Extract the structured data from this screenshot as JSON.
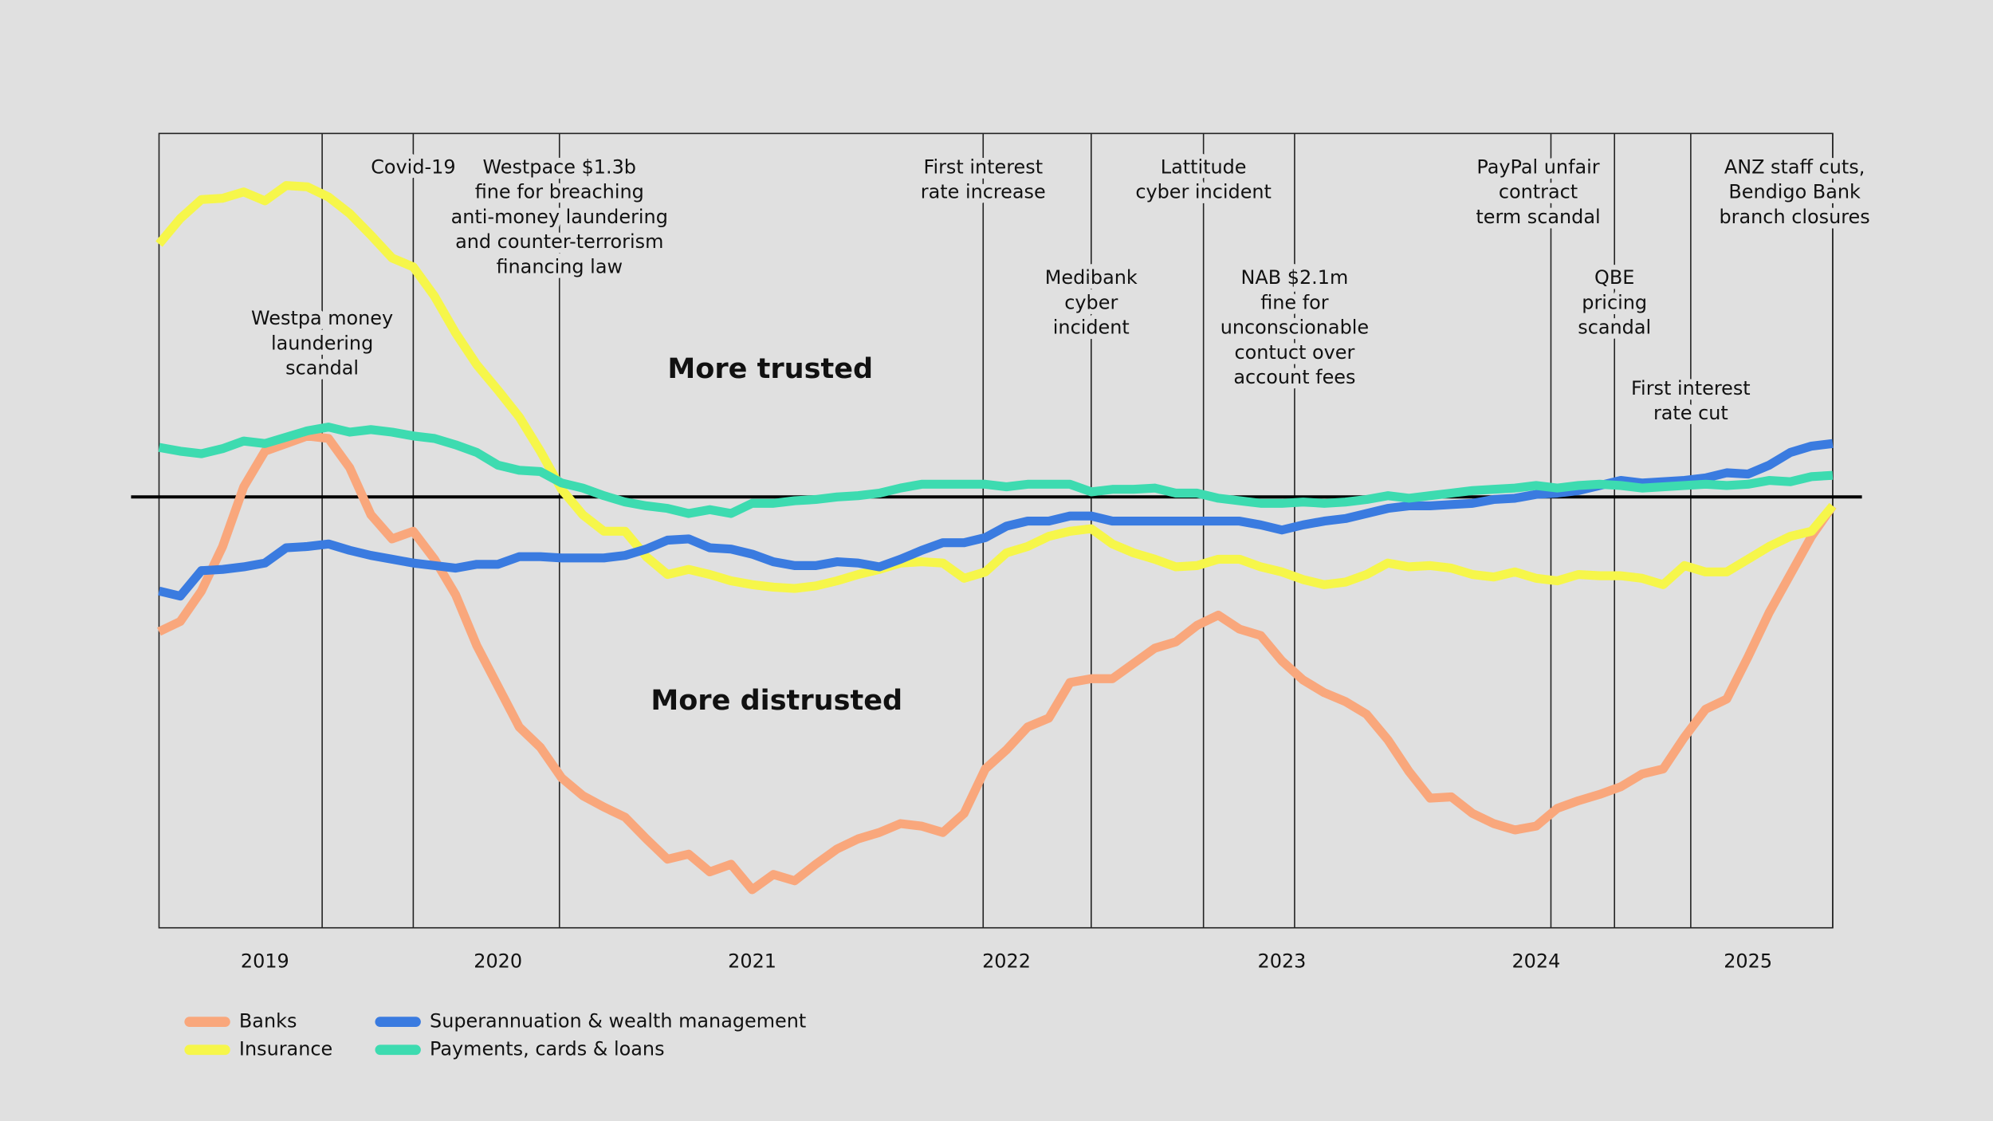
{
  "chart_data": {
    "type": "line",
    "upper_label": "More trusted",
    "lower_label": "More distrusted",
    "categories": [
      null,
      null,
      null,
      null,
      null,
      "2019",
      null,
      null,
      null,
      null,
      null,
      null,
      null,
      null,
      null,
      null,
      "2020",
      null,
      null,
      null,
      null,
      null,
      null,
      null,
      null,
      null,
      null,
      null,
      "2021",
      null,
      null,
      null,
      null,
      null,
      null,
      null,
      null,
      null,
      null,
      null,
      "2022",
      null,
      null,
      null,
      null,
      null,
      null,
      null,
      null,
      null,
      null,
      null,
      null,
      "2023",
      null,
      null,
      null,
      null,
      null,
      null,
      null,
      null,
      null,
      null,
      null,
      "2024",
      null,
      null,
      null,
      null,
      null,
      null,
      null,
      null,
      null,
      "2025",
      null,
      null,
      null,
      null
    ],
    "ylim": [
      -339,
      286
    ],
    "hline": 0,
    "series": [
      {
        "name": "Banks",
        "color": "#f9a77c",
        "values": [
          -106,
          -98,
          -74,
          -39,
          8,
          36,
          42,
          48,
          46,
          23,
          -14,
          -33,
          -27,
          -49,
          -77,
          -117,
          -149,
          -181,
          -197,
          -221,
          -235,
          -244,
          -252,
          -269,
          -285,
          -281,
          -295,
          -289,
          -309,
          -297,
          -302,
          -289,
          -277,
          -269,
          -264,
          -257,
          -259,
          -264,
          -249,
          -214,
          -199,
          -181,
          -174,
          -146,
          -143,
          -143,
          -131,
          -119,
          -114,
          -101,
          -93,
          -104,
          -109,
          -129,
          -144,
          -154,
          -161,
          -171,
          -191,
          -216,
          -237,
          -236,
          -249,
          -257,
          -262,
          -259,
          -245,
          -239,
          -234,
          -228,
          -218,
          -214,
          -189,
          -167,
          -159,
          -126,
          -91,
          -61,
          -31,
          -7
        ]
      },
      {
        "name": "Insurance",
        "color": "#f6f64a",
        "values": [
          199,
          219,
          234,
          235,
          240,
          233,
          245,
          244,
          236,
          223,
          206,
          188,
          181,
          158,
          129,
          104,
          84,
          63,
          36,
          6,
          -14,
          -27,
          -27,
          -47,
          -61,
          -57,
          -61,
          -66,
          -69,
          -71,
          -72,
          -70,
          -66,
          -61,
          -57,
          -52,
          -51,
          -52,
          -64,
          -59,
          -44,
          -39,
          -31,
          -27,
          -25,
          -37,
          -44,
          -49,
          -55,
          -54,
          -49,
          -49,
          -55,
          -59,
          -65,
          -69,
          -67,
          -61,
          -52,
          -55,
          -54,
          -56,
          -61,
          -63,
          -59,
          -64,
          -66,
          -61,
          -62,
          -62,
          -64,
          -69,
          -54,
          -59,
          -59,
          -49,
          -39,
          -31,
          -27,
          -7
        ]
      },
      {
        "name": "Superannuation & wealth management",
        "color": "#3a7be0",
        "values": [
          -74,
          -78,
          -58,
          -57,
          -55,
          -52,
          -40,
          -39,
          -37,
          -42,
          -46,
          -49,
          -52,
          -54,
          -56,
          -53,
          -53,
          -47,
          -47,
          -48,
          -48,
          -48,
          -46,
          -41,
          -34,
          -33,
          -40,
          -41,
          -45,
          -51,
          -54,
          -54,
          -51,
          -52,
          -55,
          -49,
          -42,
          -36,
          -36,
          -32,
          -23,
          -19,
          -19,
          -15,
          -15,
          -19,
          -19,
          -19,
          -19,
          -19,
          -19,
          -19,
          -22,
          -26,
          -22,
          -19,
          -17,
          -13,
          -9,
          -7,
          -7,
          -6,
          -5,
          -2,
          -1,
          2,
          3,
          5,
          9,
          13,
          11,
          12,
          13,
          15,
          19,
          18,
          25,
          35,
          40,
          42
        ]
      },
      {
        "name": "Payments, cards  & loans",
        "color": "#3ddbb0",
        "values": [
          39,
          36,
          34,
          38,
          44,
          42,
          47,
          52,
          55,
          51,
          53,
          51,
          48,
          46,
          41,
          35,
          25,
          21,
          20,
          11,
          7,
          1,
          -4,
          -7,
          -9,
          -13,
          -10,
          -13,
          -5,
          -5,
          -3,
          -2,
          0,
          1,
          3,
          7,
          10,
          10,
          10,
          10,
          8,
          10,
          10,
          10,
          4,
          6,
          6,
          7,
          3,
          3,
          -1,
          -3,
          -5,
          -5,
          -4,
          -5,
          -4,
          -2,
          1,
          -1,
          1,
          3,
          5,
          6,
          7,
          9,
          7,
          9,
          10,
          9,
          7,
          8,
          9,
          10,
          9,
          10,
          13,
          12,
          16,
          17
        ]
      }
    ],
    "annotations": [
      {
        "x": 7.7,
        "lines": [
          "Westpa money",
          "laundering",
          "scandal"
        ]
      },
      {
        "x": 12,
        "lines": [
          "Covid-19"
        ]
      },
      {
        "x": 18.9,
        "lines": [
          "Westpace $1.3b",
          "fine for breaching",
          "anti-money laundering",
          "and counter-terrorism",
          "financing law"
        ]
      },
      {
        "x": 38.9,
        "lines": [
          "First interest",
          "rate increase"
        ]
      },
      {
        "x": 44,
        "lines": [
          "Medibank",
          "cyber",
          "incident"
        ]
      },
      {
        "x": 49.3,
        "lines": [
          "Lattitude",
          "cyber incident"
        ]
      },
      {
        "x": 53.6,
        "lines": [
          "NAB $2.1m",
          "fine for",
          "unconscionable",
          "contuct over",
          "account fees"
        ]
      },
      {
        "x": 65.7,
        "lines": [
          "PayPal unfair",
          "contract",
          "term scandal"
        ]
      },
      {
        "x": 68.7,
        "lines": [
          "QBE",
          "pricing",
          "scandal"
        ]
      },
      {
        "x": 72.3,
        "lines": [
          "First interest",
          "rate cut"
        ]
      },
      {
        "x": 79,
        "lines": [
          "ANZ staff cuts,",
          "Bendigo Bank",
          "branch closures"
        ]
      }
    ]
  }
}
